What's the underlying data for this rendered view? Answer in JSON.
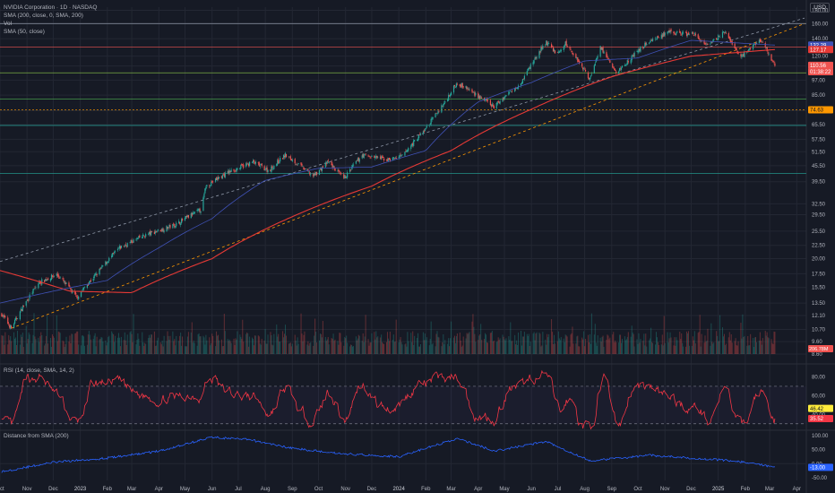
{
  "header": {
    "symbol_line": "NVIDIA Corporation · 1D · NASDAQ",
    "sma200_line": "SMA (200, close, 0, SMA, 200)",
    "vol_line": "Vol",
    "sma50_line": "SMA (50, close)",
    "currency": "USD"
  },
  "rsi_panel": {
    "label": "RSI (14, close, SMA, 14, 2)"
  },
  "dist_panel": {
    "label": "Distance from SMA (200)"
  },
  "colors": {
    "bg": "#161a25",
    "grid": "#232733",
    "text": "#b2b5be",
    "up": "#26a69a",
    "down": "#ef5350",
    "sma200": "#e53935",
    "sma50": "#3f51b5",
    "rsi": "#f23645",
    "dist": "#2962ff",
    "hline": "#8bc34a",
    "hline_teal": "#26a69a",
    "orange": "#ff9800"
  },
  "chart_data": [
    {
      "type": "candlestick",
      "title": "NVIDIA Corporation · 1D · NASDAQ",
      "y_scale": "log",
      "ylim": [
        8.6,
        185
      ],
      "y_ticks": [
        "180.00",
        "160.00",
        "140.00",
        "120.00",
        "110.00",
        "97.00",
        "85.00",
        "74.00",
        "65.50",
        "57.50",
        "51.50",
        "45.50",
        "39.50",
        "32.50",
        "29.50",
        "25.50",
        "22.50",
        "20.00",
        "17.50",
        "15.50",
        "13.50",
        "12.10",
        "10.70",
        "9.60",
        "8.60"
      ],
      "x_labels": [
        "Oct",
        "Nov",
        "Dec",
        "2023",
        "Feb",
        "Mar",
        "Apr",
        "May",
        "Jun",
        "Jul",
        "Aug",
        "Sep",
        "Oct",
        "Nov",
        "Dec",
        "2024",
        "Feb",
        "Mar",
        "Apr",
        "May",
        "Jun",
        "Jul",
        "Aug",
        "Sep",
        "Oct",
        "Nov",
        "Dec",
        "2025",
        "Feb",
        "Mar",
        "Apr"
      ],
      "price_anchors": [
        [
          "2022-10-01",
          12.5
        ],
        [
          "2022-10-14",
          10.8
        ],
        [
          "2022-11-15",
          16.2
        ],
        [
          "2022-12-05",
          17.4
        ],
        [
          "2022-12-28",
          14.2
        ],
        [
          "2023-01-20",
          17.5
        ],
        [
          "2023-02-15",
          22.0
        ],
        [
          "2023-03-15",
          24.5
        ],
        [
          "2023-04-20",
          27.0
        ],
        [
          "2023-05-20",
          31.0
        ],
        [
          "2023-05-25",
          38.0
        ],
        [
          "2023-06-20",
          43.0
        ],
        [
          "2023-07-18",
          47.0
        ],
        [
          "2023-08-05",
          43.5
        ],
        [
          "2023-08-24",
          50.0
        ],
        [
          "2023-09-25",
          41.5
        ],
        [
          "2023-10-12",
          47.0
        ],
        [
          "2023-10-30",
          40.5
        ],
        [
          "2023-11-20",
          50.0
        ],
        [
          "2023-12-20",
          48.0
        ],
        [
          "2024-01-05",
          49.5
        ],
        [
          "2024-02-01",
          63.0
        ],
        [
          "2024-02-22",
          79.0
        ],
        [
          "2024-03-08",
          95.0
        ],
        [
          "2024-04-19",
          76.5
        ],
        [
          "2024-05-20",
          95.0
        ],
        [
          "2024-06-18",
          135.5
        ],
        [
          "2024-07-01",
          122.0
        ],
        [
          "2024-07-10",
          134.0
        ],
        [
          "2024-08-07",
          98.0
        ],
        [
          "2024-08-19",
          130.0
        ],
        [
          "2024-09-06",
          103.0
        ],
        [
          "2024-10-15",
          138.0
        ],
        [
          "2024-11-07",
          148.0
        ],
        [
          "2024-12-05",
          145.0
        ],
        [
          "2024-12-20",
          130.0
        ],
        [
          "2025-01-07",
          149.0
        ],
        [
          "2025-01-27",
          118.5
        ],
        [
          "2025-02-18",
          139.0
        ],
        [
          "2025-03-07",
          110.56
        ]
      ],
      "series": [
        {
          "name": "SMA (200, close, 0, SMA, 200)",
          "last": "127.17",
          "points": [
            [
              "2022-10-01",
              18.0
            ],
            [
              "2022-12-20",
              15.0
            ],
            [
              "2023-03-01",
              14.8
            ],
            [
              "2023-06-01",
              20.0
            ],
            [
              "2023-09-01",
              29.0
            ],
            [
              "2023-12-01",
              38.0
            ],
            [
              "2024-03-01",
              52.0
            ],
            [
              "2024-06-01",
              75.0
            ],
            [
              "2024-09-01",
              100.0
            ],
            [
              "2024-12-01",
              120.0
            ],
            [
              "2025-03-07",
              127.17
            ]
          ]
        },
        {
          "name": "SMA (50, close)",
          "last": "132.29",
          "points": [
            [
              "2022-10-01",
              13.5
            ],
            [
              "2022-12-01",
              15.0
            ],
            [
              "2023-02-01",
              16.5
            ],
            [
              "2023-04-01",
              22.0
            ],
            [
              "2023-06-01",
              28.5
            ],
            [
              "2023-08-01",
              40.0
            ],
            [
              "2023-10-01",
              44.5
            ],
            [
              "2023-12-01",
              45.0
            ],
            [
              "2024-02-01",
              52.0
            ],
            [
              "2024-04-01",
              80.0
            ],
            [
              "2024-06-01",
              95.0
            ],
            [
              "2024-08-01",
              115.0
            ],
            [
              "2024-10-01",
              118.0
            ],
            [
              "2024-12-01",
              138.0
            ],
            [
              "2025-03-07",
              132.29
            ]
          ]
        }
      ],
      "horizontal_levels": [
        {
          "value": 160.0,
          "color": "#8f98a8"
        },
        {
          "value": 130.0,
          "color": "#ef5350"
        },
        {
          "value": 103.5,
          "color": "#8bc34a"
        },
        {
          "value": 82.0,
          "color": "#4caf50"
        },
        {
          "value": 74.63,
          "color": "#ff9800",
          "dashed": true
        },
        {
          "value": 65.0,
          "color": "#26a69a"
        },
        {
          "value": 42.5,
          "color": "#26a69a"
        }
      ],
      "trendlines": [
        {
          "from": [
            "2022-10-14",
            10.8
          ],
          "to": [
            "2025-04-10",
            160.0
          ],
          "color": "#ff9800",
          "dashed": true
        },
        {
          "from": [
            "2022-10-01",
            19.5
          ],
          "to": [
            "2025-04-10",
            168.0
          ],
          "color": "#8f98a8",
          "dashed": true
        }
      ],
      "price_tags": [
        {
          "text": "132.29",
          "color": "#3f51b5",
          "value": 132.29
        },
        {
          "text": "127.17",
          "color": "#e53935",
          "value": 127.17
        },
        {
          "text": "110.56",
          "color": "#ef5350",
          "value": 110.56
        },
        {
          "text": "01:38:22",
          "color": "#ef5350",
          "value": 104.5
        },
        {
          "text": "74.63",
          "color": "#ff9800",
          "value": 74.63,
          "dark_text": true
        }
      ],
      "volume_tag": "206.78M"
    },
    {
      "type": "line",
      "title": "RSI (14, close, SMA, 14, 2)",
      "ylim": [
        25,
        90
      ],
      "y_ticks": [
        "80.00",
        "60.00",
        "40.00"
      ],
      "levels": [
        70,
        30
      ],
      "tags": [
        {
          "text": "46.42",
          "value": 46.42,
          "color": "#ffeb3b"
        },
        {
          "text": "35.52",
          "value": 35.52,
          "color": "#f23645"
        }
      ]
    },
    {
      "type": "line",
      "title": "Distance from SMA (200)",
      "ylim": [
        -60,
        110
      ],
      "y_ticks": [
        "100.00",
        "50.00",
        "0.00",
        "-50.00"
      ],
      "points": [
        [
          "2022-10-01",
          -30
        ],
        [
          "2022-12-01",
          5
        ],
        [
          "2023-02-01",
          20
        ],
        [
          "2023-04-01",
          45
        ],
        [
          "2023-06-01",
          95
        ],
        [
          "2023-07-15",
          85
        ],
        [
          "2023-09-01",
          55
        ],
        [
          "2023-11-01",
          35
        ],
        [
          "2024-01-01",
          25
        ],
        [
          "2024-03-08",
          90
        ],
        [
          "2024-04-20",
          45
        ],
        [
          "2024-06-18",
          80
        ],
        [
          "2024-08-07",
          10
        ],
        [
          "2024-10-15",
          30
        ],
        [
          "2024-12-01",
          20
        ],
        [
          "2025-01-20",
          10
        ],
        [
          "2025-03-07",
          -13
        ]
      ],
      "tag": {
        "text": "-13.00",
        "value": -13,
        "color": "#2962ff"
      }
    }
  ]
}
